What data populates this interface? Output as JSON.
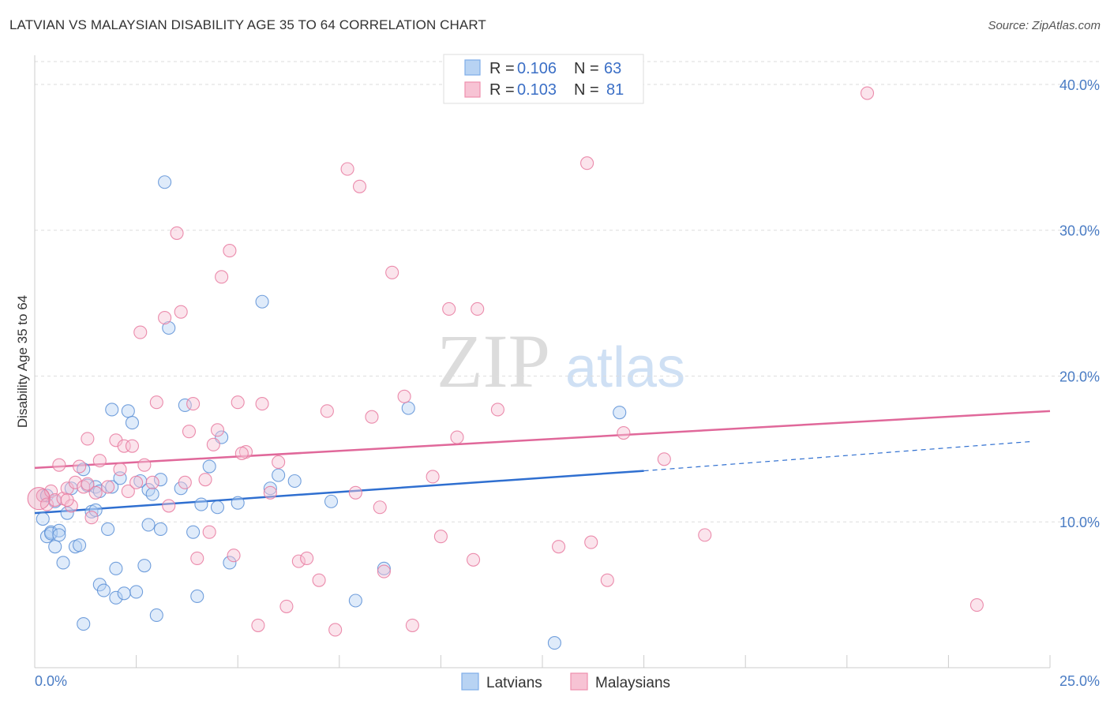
{
  "title": "LATVIAN VS MALAYSIAN DISABILITY AGE 35 TO 64 CORRELATION CHART",
  "source": "Source: ZipAtlas.com",
  "watermark": {
    "zip": "ZIP",
    "atlas": "atlas"
  },
  "chart_data": {
    "type": "scatter",
    "title": "LATVIAN VS MALAYSIAN DISABILITY AGE 35 TO 64 CORRELATION CHART",
    "xlabel": "",
    "ylabel": "Disability Age 35 to 64",
    "xlim": [
      0,
      25
    ],
    "ylim": [
      0,
      42
    ],
    "x_tick_labels": [
      "0.0%",
      "25.0%"
    ],
    "y_ticks": [
      10,
      20,
      30,
      40
    ],
    "y_tick_labels": [
      "10.0%",
      "20.0%",
      "30.0%",
      "40.0%"
    ],
    "legend": {
      "r_label": "R =",
      "n_label": "N =",
      "entries": [
        {
          "name": "Latvians",
          "r": "0.106",
          "n": "63",
          "color": "#7eaee8",
          "fill": "#b8d3f3"
        },
        {
          "name": "Malaysians",
          "r": "0.103",
          "n": "81",
          "color": "#ee8fae",
          "fill": "#f7c3d4"
        }
      ]
    },
    "series": [
      {
        "name": "Latvians",
        "color": "#5b8fd6",
        "trend": {
          "x0": 0,
          "y0": 10.6,
          "x1": 15,
          "y1": 13.5,
          "dash_x1": 24.5,
          "dash_y1": 15.5,
          "color": "#2f6fd0"
        },
        "points": [
          [
            0.2,
            10.2
          ],
          [
            0.3,
            9.0
          ],
          [
            0.4,
            9.3
          ],
          [
            0.5,
            8.3
          ],
          [
            0.4,
            9.2
          ],
          [
            0.6,
            9.4
          ],
          [
            0.7,
            7.2
          ],
          [
            0.8,
            10.6
          ],
          [
            0.9,
            12.3
          ],
          [
            1.0,
            8.3
          ],
          [
            1.1,
            8.4
          ],
          [
            1.2,
            13.6
          ],
          [
            1.3,
            12.5
          ],
          [
            1.4,
            10.7
          ],
          [
            1.5,
            12.4
          ],
          [
            1.6,
            12.1
          ],
          [
            1.8,
            9.5
          ],
          [
            1.9,
            12.4
          ],
          [
            1.9,
            17.7
          ],
          [
            2.0,
            6.8
          ],
          [
            2.1,
            13.0
          ],
          [
            2.3,
            17.6
          ],
          [
            2.4,
            16.8
          ],
          [
            2.5,
            5.2
          ],
          [
            2.6,
            12.8
          ],
          [
            2.7,
            7.0
          ],
          [
            2.8,
            12.2
          ],
          [
            2.9,
            11.9
          ],
          [
            3.0,
            3.6
          ],
          [
            3.1,
            12.9
          ],
          [
            3.2,
            33.3
          ],
          [
            3.3,
            23.3
          ],
          [
            3.6,
            12.3
          ],
          [
            3.7,
            18.0
          ],
          [
            3.9,
            9.3
          ],
          [
            4.0,
            4.9
          ],
          [
            4.1,
            11.2
          ],
          [
            4.3,
            13.8
          ],
          [
            4.5,
            11.0
          ],
          [
            4.6,
            15.8
          ],
          [
            4.8,
            7.2
          ],
          [
            5.0,
            11.3
          ],
          [
            5.6,
            25.1
          ],
          [
            5.8,
            12.3
          ],
          [
            6.0,
            13.2
          ],
          [
            6.4,
            12.8
          ],
          [
            7.3,
            11.4
          ],
          [
            7.9,
            4.6
          ],
          [
            8.6,
            6.8
          ],
          [
            9.2,
            17.8
          ],
          [
            12.8,
            1.7
          ],
          [
            14.4,
            17.5
          ],
          [
            1.2,
            3.0
          ],
          [
            1.6,
            5.7
          ],
          [
            1.7,
            5.3
          ],
          [
            2.0,
            4.8
          ],
          [
            2.2,
            5.1
          ],
          [
            3.1,
            9.5
          ],
          [
            0.3,
            11.8
          ],
          [
            0.5,
            11.4
          ],
          [
            0.6,
            9.1
          ],
          [
            1.5,
            10.8
          ],
          [
            2.8,
            9.8
          ]
        ]
      },
      {
        "name": "Malaysians",
        "color": "#e8799f",
        "trend": {
          "x0": 0,
          "y0": 13.7,
          "x1": 25,
          "y1": 17.6,
          "color": "#e0689a"
        },
        "points": [
          [
            0.2,
            11.8
          ],
          [
            0.3,
            11.2
          ],
          [
            0.4,
            12.1
          ],
          [
            0.5,
            11.5
          ],
          [
            0.6,
            13.9
          ],
          [
            0.7,
            11.6
          ],
          [
            0.8,
            12.3
          ],
          [
            0.9,
            11.1
          ],
          [
            1.0,
            12.7
          ],
          [
            1.1,
            13.8
          ],
          [
            1.2,
            12.4
          ],
          [
            1.3,
            15.7
          ],
          [
            1.4,
            10.3
          ],
          [
            1.5,
            12.0
          ],
          [
            1.6,
            14.2
          ],
          [
            1.8,
            12.4
          ],
          [
            2.0,
            15.6
          ],
          [
            2.1,
            13.6
          ],
          [
            2.2,
            15.2
          ],
          [
            2.3,
            12.1
          ],
          [
            2.4,
            15.2
          ],
          [
            2.5,
            12.7
          ],
          [
            2.6,
            23.0
          ],
          [
            2.7,
            13.9
          ],
          [
            3.0,
            18.2
          ],
          [
            3.2,
            24.0
          ],
          [
            3.3,
            11.1
          ],
          [
            3.5,
            29.8
          ],
          [
            3.6,
            24.4
          ],
          [
            3.7,
            12.7
          ],
          [
            3.8,
            16.2
          ],
          [
            3.9,
            18.1
          ],
          [
            4.0,
            7.5
          ],
          [
            4.2,
            12.9
          ],
          [
            4.3,
            9.3
          ],
          [
            4.4,
            15.3
          ],
          [
            4.5,
            16.3
          ],
          [
            4.6,
            26.8
          ],
          [
            4.8,
            28.6
          ],
          [
            4.9,
            7.7
          ],
          [
            5.0,
            18.2
          ],
          [
            5.2,
            14.8
          ],
          [
            5.5,
            2.9
          ],
          [
            5.6,
            18.1
          ],
          [
            5.8,
            12.0
          ],
          [
            6.0,
            14.1
          ],
          [
            6.2,
            4.2
          ],
          [
            6.5,
            7.3
          ],
          [
            6.7,
            7.5
          ],
          [
            7.0,
            6.0
          ],
          [
            7.2,
            17.6
          ],
          [
            7.4,
            2.6
          ],
          [
            7.7,
            34.2
          ],
          [
            7.9,
            12.0
          ],
          [
            8.0,
            33.0
          ],
          [
            8.3,
            17.2
          ],
          [
            8.5,
            11.0
          ],
          [
            8.8,
            27.1
          ],
          [
            9.1,
            18.6
          ],
          [
            9.3,
            2.9
          ],
          [
            9.8,
            13.1
          ],
          [
            10.0,
            9.0
          ],
          [
            10.2,
            24.6
          ],
          [
            10.4,
            15.8
          ],
          [
            10.8,
            7.4
          ],
          [
            10.9,
            24.6
          ],
          [
            11.4,
            17.7
          ],
          [
            12.9,
            8.3
          ],
          [
            13.6,
            34.6
          ],
          [
            13.7,
            8.6
          ],
          [
            14.1,
            6.0
          ],
          [
            14.5,
            16.1
          ],
          [
            15.5,
            14.3
          ],
          [
            16.5,
            9.1
          ],
          [
            20.5,
            39.4
          ],
          [
            23.2,
            4.3
          ],
          [
            2.9,
            12.7
          ],
          [
            5.1,
            14.7
          ],
          [
            1.3,
            12.6
          ],
          [
            0.8,
            11.5
          ],
          [
            8.6,
            6.6
          ]
        ]
      }
    ]
  }
}
